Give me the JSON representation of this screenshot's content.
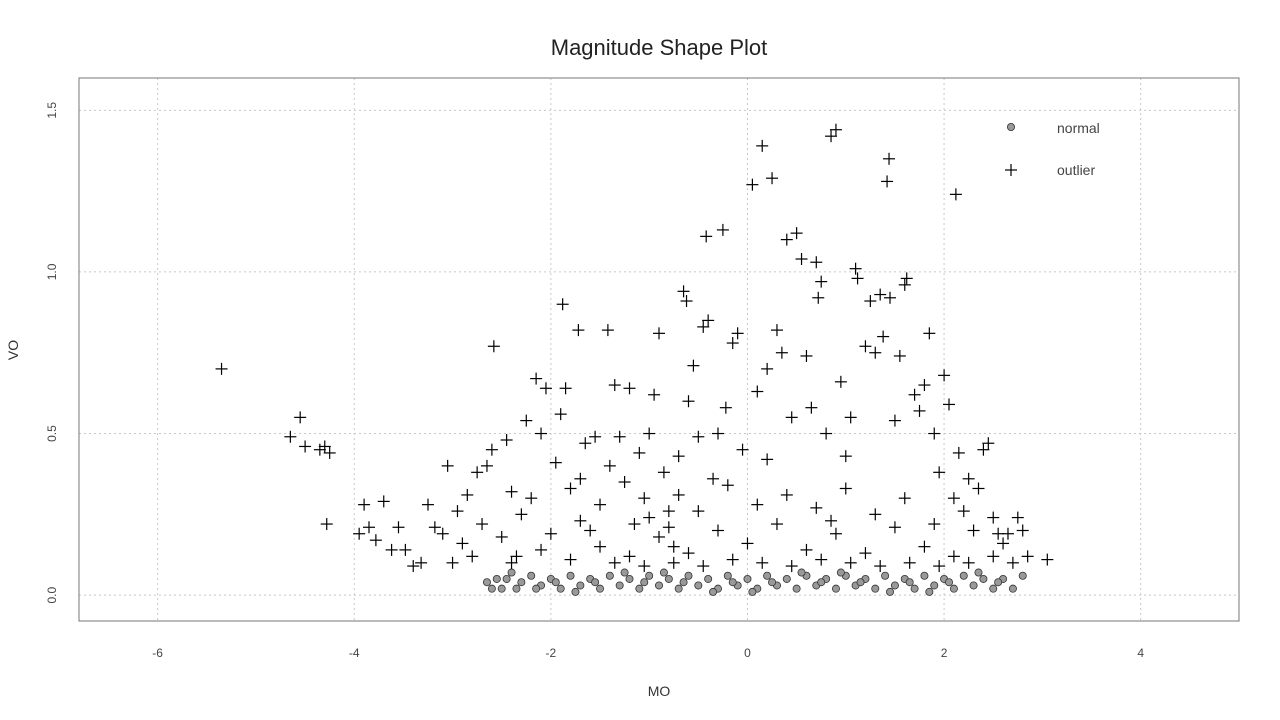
{
  "chart_data": {
    "type": "scatter",
    "title": "Magnitude Shape Plot",
    "xlabel": "MO",
    "ylabel": "VO",
    "xlim": [
      -6.8,
      5
    ],
    "ylim": [
      -0.08,
      1.6
    ],
    "xticks": [
      -6,
      -4,
      -2,
      0,
      2,
      4
    ],
    "xtick_labels": [
      "-6",
      "-4",
      "-2",
      "0",
      "2",
      "4"
    ],
    "yticks": [
      0.0,
      0.5,
      1.0,
      1.5
    ],
    "ytick_labels": [
      "0.0",
      "0.5",
      "1.0",
      "1.5"
    ],
    "grid": true,
    "legend_position": "top-right",
    "series": [
      {
        "name": "normal",
        "marker": "filled-circle",
        "color": "#999999",
        "points": [
          [
            -2.65,
            0.04
          ],
          [
            -2.55,
            0.05
          ],
          [
            -2.5,
            0.02
          ],
          [
            -2.45,
            0.05
          ],
          [
            -2.35,
            0.02
          ],
          [
            -2.3,
            0.04
          ],
          [
            -2.2,
            0.06
          ],
          [
            -2.1,
            0.03
          ],
          [
            -2.0,
            0.05
          ],
          [
            -1.9,
            0.02
          ],
          [
            -1.8,
            0.06
          ],
          [
            -1.7,
            0.03
          ],
          [
            -1.6,
            0.05
          ],
          [
            -1.5,
            0.02
          ],
          [
            -1.4,
            0.06
          ],
          [
            -1.3,
            0.03
          ],
          [
            -1.2,
            0.05
          ],
          [
            -1.1,
            0.02
          ],
          [
            -1.0,
            0.06
          ],
          [
            -0.9,
            0.03
          ],
          [
            -0.8,
            0.05
          ],
          [
            -0.7,
            0.02
          ],
          [
            -0.6,
            0.06
          ],
          [
            -0.5,
            0.03
          ],
          [
            -0.4,
            0.05
          ],
          [
            -0.3,
            0.02
          ],
          [
            -0.2,
            0.06
          ],
          [
            -0.1,
            0.03
          ],
          [
            0.0,
            0.05
          ],
          [
            0.1,
            0.02
          ],
          [
            0.2,
            0.06
          ],
          [
            0.3,
            0.03
          ],
          [
            0.4,
            0.05
          ],
          [
            0.5,
            0.02
          ],
          [
            0.6,
            0.06
          ],
          [
            0.7,
            0.03
          ],
          [
            0.8,
            0.05
          ],
          [
            0.9,
            0.02
          ],
          [
            1.0,
            0.06
          ],
          [
            1.1,
            0.03
          ],
          [
            1.2,
            0.05
          ],
          [
            1.3,
            0.02
          ],
          [
            1.4,
            0.06
          ],
          [
            1.5,
            0.03
          ],
          [
            1.6,
            0.05
          ],
          [
            1.7,
            0.02
          ],
          [
            1.8,
            0.06
          ],
          [
            1.9,
            0.03
          ],
          [
            2.0,
            0.05
          ],
          [
            2.1,
            0.02
          ],
          [
            2.2,
            0.06
          ],
          [
            2.3,
            0.03
          ],
          [
            2.4,
            0.05
          ],
          [
            2.5,
            0.02
          ],
          [
            2.6,
            0.05
          ],
          [
            2.7,
            0.02
          ],
          [
            2.8,
            0.06
          ],
          [
            -2.15,
            0.02
          ],
          [
            -1.25,
            0.07
          ],
          [
            -0.35,
            0.01
          ],
          [
            0.55,
            0.07
          ],
          [
            1.45,
            0.01
          ],
          [
            2.35,
            0.07
          ],
          [
            -1.75,
            0.01
          ],
          [
            -0.85,
            0.07
          ],
          [
            0.05,
            0.01
          ],
          [
            0.95,
            0.07
          ],
          [
            1.85,
            0.01
          ],
          [
            -2.4,
            0.07
          ],
          [
            -0.15,
            0.04
          ],
          [
            0.75,
            0.04
          ],
          [
            1.65,
            0.04
          ],
          [
            -1.55,
            0.04
          ],
          [
            -0.65,
            0.04
          ],
          [
            0.25,
            0.04
          ],
          [
            1.15,
            0.04
          ],
          [
            2.05,
            0.04
          ],
          [
            -1.95,
            0.04
          ],
          [
            -1.05,
            0.04
          ],
          [
            2.55,
            0.04
          ],
          [
            -2.6,
            0.02
          ]
        ]
      },
      {
        "name": "outlier",
        "marker": "plus",
        "color": "#000000",
        "points": [
          [
            -5.35,
            0.7
          ],
          [
            -4.65,
            0.49
          ],
          [
            -4.55,
            0.55
          ],
          [
            -4.5,
            0.46
          ],
          [
            -4.35,
            0.45
          ],
          [
            -4.3,
            0.46
          ],
          [
            -4.25,
            0.44
          ],
          [
            -4.28,
            0.22
          ],
          [
            -3.95,
            0.19
          ],
          [
            -3.9,
            0.28
          ],
          [
            -3.85,
            0.21
          ],
          [
            -3.78,
            0.17
          ],
          [
            -3.7,
            0.29
          ],
          [
            -3.62,
            0.14
          ],
          [
            -3.55,
            0.21
          ],
          [
            -3.48,
            0.14
          ],
          [
            -3.4,
            0.09
          ],
          [
            -3.32,
            0.1
          ],
          [
            -3.25,
            0.28
          ],
          [
            -3.18,
            0.21
          ],
          [
            -3.1,
            0.19
          ],
          [
            -3.05,
            0.4
          ],
          [
            -3.0,
            0.1
          ],
          [
            -2.95,
            0.26
          ],
          [
            -2.9,
            0.16
          ],
          [
            -2.85,
            0.31
          ],
          [
            -2.8,
            0.12
          ],
          [
            -2.75,
            0.38
          ],
          [
            -2.7,
            0.22
          ],
          [
            -2.65,
            0.4
          ],
          [
            -2.6,
            0.45
          ],
          [
            -2.58,
            0.77
          ],
          [
            -2.5,
            0.18
          ],
          [
            -2.45,
            0.48
          ],
          [
            -2.4,
            0.32
          ],
          [
            -2.35,
            0.12
          ],
          [
            -2.3,
            0.25
          ],
          [
            -2.25,
            0.54
          ],
          [
            -2.2,
            0.3
          ],
          [
            -2.15,
            0.67
          ],
          [
            -2.1,
            0.5
          ],
          [
            -2.05,
            0.64
          ],
          [
            -2.0,
            0.19
          ],
          [
            -1.95,
            0.41
          ],
          [
            -1.9,
            0.56
          ],
          [
            -1.88,
            0.9
          ],
          [
            -1.85,
            0.64
          ],
          [
            -1.8,
            0.33
          ],
          [
            -1.72,
            0.82
          ],
          [
            -1.7,
            0.36
          ],
          [
            -1.65,
            0.47
          ],
          [
            -1.6,
            0.2
          ],
          [
            -1.55,
            0.49
          ],
          [
            -1.5,
            0.28
          ],
          [
            -1.42,
            0.82
          ],
          [
            -1.4,
            0.4
          ],
          [
            -1.35,
            0.65
          ],
          [
            -1.3,
            0.49
          ],
          [
            -1.25,
            0.35
          ],
          [
            -1.2,
            0.64
          ],
          [
            -1.15,
            0.22
          ],
          [
            -1.1,
            0.44
          ],
          [
            -1.05,
            0.3
          ],
          [
            -1.0,
            0.5
          ],
          [
            -0.95,
            0.62
          ],
          [
            -0.9,
            0.81
          ],
          [
            -0.85,
            0.38
          ],
          [
            -0.8,
            0.26
          ],
          [
            -0.75,
            0.15
          ],
          [
            -0.7,
            0.43
          ],
          [
            -0.65,
            0.94
          ],
          [
            -0.62,
            0.91
          ],
          [
            -0.6,
            0.6
          ],
          [
            -0.55,
            0.71
          ],
          [
            -0.5,
            0.49
          ],
          [
            -0.45,
            0.83
          ],
          [
            -0.42,
            1.11
          ],
          [
            -0.4,
            0.85
          ],
          [
            -0.35,
            0.36
          ],
          [
            -0.3,
            0.5
          ],
          [
            -0.25,
            1.13
          ],
          [
            -0.22,
            0.58
          ],
          [
            -0.15,
            0.78
          ],
          [
            -0.1,
            0.81
          ],
          [
            -0.05,
            0.45
          ],
          [
            0.05,
            1.27
          ],
          [
            0.1,
            0.63
          ],
          [
            0.15,
            1.39
          ],
          [
            0.2,
            0.7
          ],
          [
            0.25,
            1.29
          ],
          [
            0.3,
            0.82
          ],
          [
            0.35,
            0.75
          ],
          [
            0.4,
            1.1
          ],
          [
            0.45,
            0.55
          ],
          [
            0.5,
            1.12
          ],
          [
            0.55,
            1.04
          ],
          [
            0.6,
            0.74
          ],
          [
            0.65,
            0.58
          ],
          [
            0.7,
            1.03
          ],
          [
            0.72,
            0.92
          ],
          [
            0.75,
            0.97
          ],
          [
            0.8,
            0.5
          ],
          [
            0.85,
            1.42
          ],
          [
            0.9,
            1.44
          ],
          [
            0.95,
            0.66
          ],
          [
            1.0,
            0.43
          ],
          [
            1.05,
            0.55
          ],
          [
            1.1,
            1.01
          ],
          [
            1.12,
            0.98
          ],
          [
            1.2,
            0.77
          ],
          [
            1.25,
            0.91
          ],
          [
            1.3,
            0.75
          ],
          [
            1.35,
            0.93
          ],
          [
            1.38,
            0.8
          ],
          [
            1.42,
            1.28
          ],
          [
            1.44,
            1.35
          ],
          [
            1.45,
            0.92
          ],
          [
            1.5,
            0.54
          ],
          [
            1.55,
            0.74
          ],
          [
            1.6,
            0.96
          ],
          [
            1.62,
            0.98
          ],
          [
            1.7,
            0.62
          ],
          [
            1.75,
            0.57
          ],
          [
            1.8,
            0.65
          ],
          [
            1.85,
            0.81
          ],
          [
            1.9,
            0.5
          ],
          [
            1.95,
            0.38
          ],
          [
            2.0,
            0.68
          ],
          [
            2.05,
            0.59
          ],
          [
            2.1,
            0.3
          ],
          [
            2.12,
            1.24
          ],
          [
            2.15,
            0.44
          ],
          [
            2.2,
            0.26
          ],
          [
            2.25,
            0.36
          ],
          [
            2.3,
            0.2
          ],
          [
            2.35,
            0.33
          ],
          [
            2.4,
            0.45
          ],
          [
            2.45,
            0.47
          ],
          [
            2.5,
            0.24
          ],
          [
            2.55,
            0.19
          ],
          [
            2.6,
            0.16
          ],
          [
            2.65,
            0.19
          ],
          [
            2.7,
            0.1
          ],
          [
            2.75,
            0.24
          ],
          [
            2.8,
            0.2
          ],
          [
            2.85,
            0.12
          ],
          [
            3.05,
            0.11
          ],
          [
            -1.5,
            0.15
          ],
          [
            -1.2,
            0.12
          ],
          [
            -0.9,
            0.18
          ],
          [
            -0.6,
            0.13
          ],
          [
            -0.3,
            0.2
          ],
          [
            0.0,
            0.16
          ],
          [
            0.3,
            0.22
          ],
          [
            0.6,
            0.14
          ],
          [
            0.9,
            0.19
          ],
          [
            1.2,
            0.13
          ],
          [
            1.5,
            0.21
          ],
          [
            1.8,
            0.15
          ],
          [
            2.1,
            0.12
          ],
          [
            -1.8,
            0.11
          ],
          [
            -2.1,
            0.14
          ],
          [
            -1.35,
            0.1
          ],
          [
            -1.05,
            0.09
          ],
          [
            -0.75,
            0.1
          ],
          [
            -0.45,
            0.09
          ],
          [
            -0.15,
            0.11
          ],
          [
            0.15,
            0.1
          ],
          [
            0.45,
            0.09
          ],
          [
            0.75,
            0.11
          ],
          [
            1.05,
            0.1
          ],
          [
            1.35,
            0.09
          ],
          [
            1.65,
            0.1
          ],
          [
            1.95,
            0.09
          ],
          [
            2.25,
            0.1
          ],
          [
            -0.5,
            0.26
          ],
          [
            0.1,
            0.28
          ],
          [
            0.7,
            0.27
          ],
          [
            1.3,
            0.25
          ],
          [
            -1.0,
            0.24
          ],
          [
            -0.2,
            0.34
          ],
          [
            0.4,
            0.31
          ],
          [
            1.0,
            0.33
          ],
          [
            -0.7,
            0.31
          ],
          [
            1.6,
            0.3
          ],
          [
            0.2,
            0.42
          ],
          [
            -0.8,
            0.21
          ],
          [
            0.85,
            0.23
          ],
          [
            -1.7,
            0.23
          ],
          [
            1.9,
            0.22
          ],
          [
            -2.4,
            0.1
          ],
          [
            2.5,
            0.12
          ]
        ]
      }
    ]
  }
}
